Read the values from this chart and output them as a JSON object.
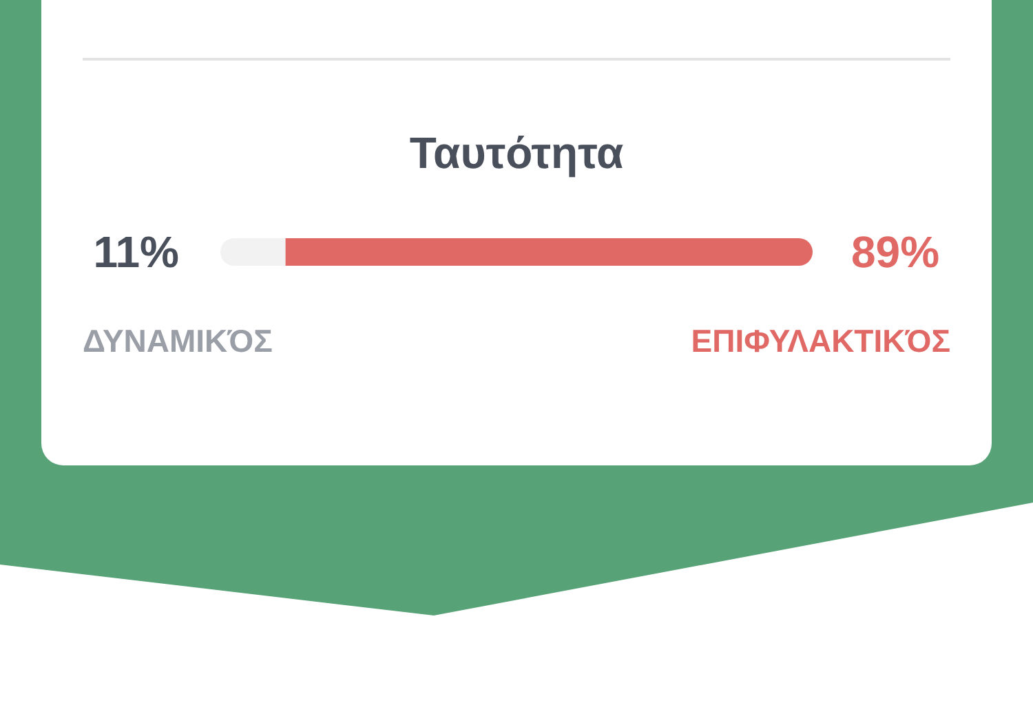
{
  "chart_data": {
    "type": "bar",
    "orientation": "horizontal",
    "stacked": true,
    "title": "Ταυτότητα",
    "categories": [
      null
    ],
    "series": [
      {
        "name": "ΔΥΝΑΜΙΚΌΣ",
        "color": "#f2f2f2",
        "values": [
          11
        ],
        "value_labels": [
          "11%"
        ]
      },
      {
        "name": "ΕΠΙΦΥΛΑΚΤΙΚΌΣ",
        "color": "#e06966",
        "values": [
          89
        ],
        "value_labels": [
          "89%"
        ]
      }
    ]
  }
}
